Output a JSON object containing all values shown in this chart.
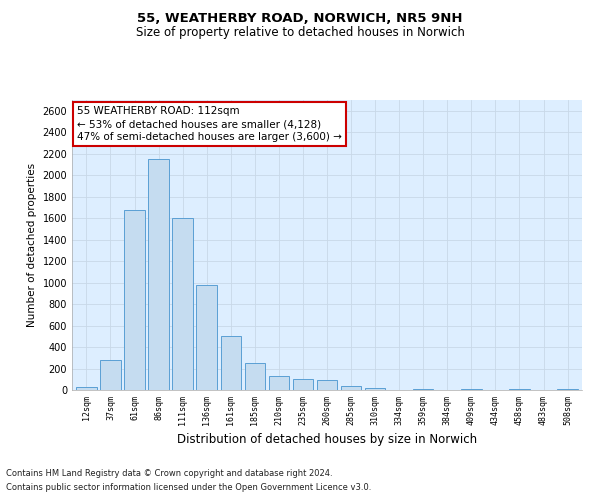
{
  "title1": "55, WEATHERBY ROAD, NORWICH, NR5 9NH",
  "title2": "Size of property relative to detached houses in Norwich",
  "xlabel": "Distribution of detached houses by size in Norwich",
  "ylabel": "Number of detached properties",
  "categories": [
    "12sqm",
    "37sqm",
    "61sqm",
    "86sqm",
    "111sqm",
    "136sqm",
    "161sqm",
    "185sqm",
    "210sqm",
    "235sqm",
    "260sqm",
    "285sqm",
    "310sqm",
    "334sqm",
    "359sqm",
    "384sqm",
    "409sqm",
    "434sqm",
    "458sqm",
    "483sqm",
    "508sqm"
  ],
  "values": [
    30,
    280,
    1680,
    2150,
    1600,
    975,
    500,
    250,
    135,
    105,
    95,
    35,
    20,
    0,
    5,
    0,
    5,
    0,
    5,
    0,
    10
  ],
  "highlight_index": 3,
  "bar_color": "#c5dcf0",
  "bar_edge_color": "#5a9fd4",
  "grid_color": "#c8d8e8",
  "bg_color": "#ddeeff",
  "background_color": "#ffffff",
  "annotation_text": "55 WEATHERBY ROAD: 112sqm\n← 53% of detached houses are smaller (4,128)\n47% of semi-detached houses are larger (3,600) →",
  "annotation_box_edge_color": "#cc0000",
  "footnote1": "Contains HM Land Registry data © Crown copyright and database right 2024.",
  "footnote2": "Contains public sector information licensed under the Open Government Licence v3.0.",
  "ylim": [
    0,
    2700
  ],
  "yticks": [
    0,
    200,
    400,
    600,
    800,
    1000,
    1200,
    1400,
    1600,
    1800,
    2000,
    2200,
    2400,
    2600
  ]
}
